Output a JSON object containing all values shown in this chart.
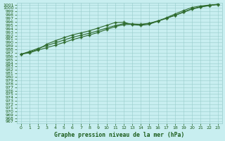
{
  "title": "Graphe pression niveau de la mer (hPa)",
  "x_values": [
    0,
    1,
    2,
    3,
    4,
    5,
    6,
    7,
    8,
    9,
    10,
    11,
    12,
    13,
    14,
    15,
    16,
    17,
    18,
    19,
    20,
    21,
    22,
    23
  ],
  "line1": [
    986.6,
    987.2,
    988.0,
    989.5,
    990.5,
    991.4,
    992.2,
    992.8,
    993.4,
    994.2,
    995.0,
    995.8,
    995.9,
    995.2,
    995.0,
    995.3,
    996.2,
    997.2,
    998.3,
    999.3,
    1000.2,
    1000.6,
    1000.9,
    1001.1
  ],
  "line2": [
    986.6,
    987.4,
    988.3,
    989.1,
    989.9,
    990.7,
    991.5,
    992.1,
    992.7,
    993.4,
    994.2,
    994.9,
    995.5,
    995.4,
    995.3,
    995.6,
    996.3,
    997.1,
    997.9,
    998.8,
    999.7,
    1000.3,
    1000.7,
    1001.1
  ],
  "line3": [
    986.6,
    987.0,
    987.8,
    988.5,
    989.2,
    990.0,
    990.8,
    991.5,
    992.2,
    992.9,
    993.8,
    994.6,
    995.2,
    995.3,
    995.2,
    995.5,
    996.2,
    997.0,
    997.9,
    998.9,
    999.8,
    1000.4,
    1000.8,
    1001.0
  ],
  "line_color": "#2d6a2d",
  "bg_color": "#c8eef0",
  "grid_color": "#99cccc",
  "text_color": "#1a5c1a",
  "ylim_min": 966.5,
  "ylim_max": 1001.5,
  "ytick_min": 967,
  "ytick_max": 1001,
  "xlim_min": -0.5,
  "xlim_max": 23.5,
  "xlabel_fontsize": 5.8,
  "tick_fontsize": 4.5
}
